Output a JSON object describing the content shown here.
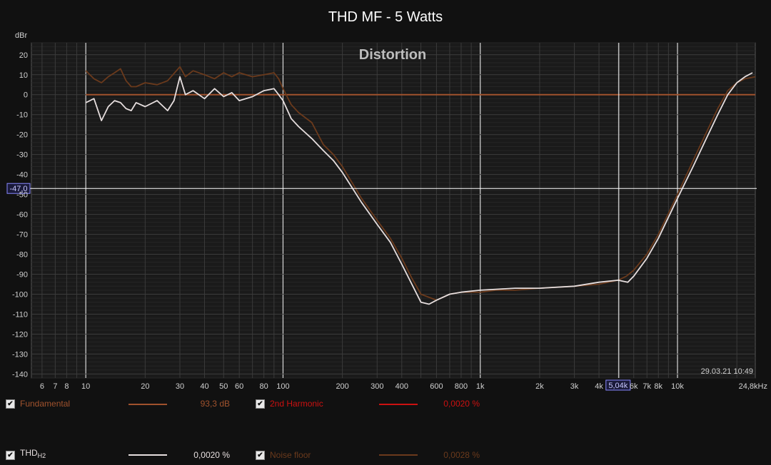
{
  "colors": {
    "background": "#111111",
    "fundamental": "#a0522d",
    "second_harmonic": "#cc1111",
    "thd": "#e6dede",
    "noise_floor": "#6b3a1c",
    "grid_major": "#3a3a3a",
    "cursor": "#ffffff"
  },
  "chart_data": {
    "type": "line",
    "title": "THD MF - 5 Watts",
    "watermark": "Distortion",
    "ylabel": "dBr",
    "xscale": "log",
    "xlim": [
      5.3,
      24800
    ],
    "ylim": [
      -142,
      26
    ],
    "x_tick_labels": [
      {
        "x": 6,
        "label": "6"
      },
      {
        "x": 7,
        "label": "7"
      },
      {
        "x": 8,
        "label": "8"
      },
      {
        "x": 10,
        "label": "10"
      },
      {
        "x": 20,
        "label": "20"
      },
      {
        "x": 30,
        "label": "30"
      },
      {
        "x": 40,
        "label": "40"
      },
      {
        "x": 50,
        "label": "50"
      },
      {
        "x": 60,
        "label": "60"
      },
      {
        "x": 80,
        "label": "80"
      },
      {
        "x": 100,
        "label": "100"
      },
      {
        "x": 200,
        "label": "200"
      },
      {
        "x": 300,
        "label": "300"
      },
      {
        "x": 400,
        "label": "400"
      },
      {
        "x": 600,
        "label": "600"
      },
      {
        "x": 800,
        "label": "800"
      },
      {
        "x": 1000,
        "label": "1k"
      },
      {
        "x": 2000,
        "label": "2k"
      },
      {
        "x": 3000,
        "label": "3k"
      },
      {
        "x": 4000,
        "label": "4k"
      },
      {
        "x": 6000,
        "label": "6k"
      },
      {
        "x": 7000,
        "label": "7k"
      },
      {
        "x": 8000,
        "label": "8k"
      },
      {
        "x": 10000,
        "label": "10k"
      },
      {
        "x": 24800,
        "label": "24,8kHz"
      }
    ],
    "y_ticks": [
      20,
      10,
      0,
      -10,
      -20,
      -30,
      -40,
      -50,
      -60,
      -70,
      -80,
      -90,
      -100,
      -110,
      -120,
      -130,
      -140
    ],
    "cursor": {
      "x": 5040,
      "y": -47.0,
      "x_label": "5,04k",
      "y_label": "-47,0"
    },
    "timestamp": "29.03.21 10:49",
    "series": [
      {
        "name": "Fundamental",
        "key": "fundamental",
        "color": "#a0522d",
        "points": [
          [
            10,
            0
          ],
          [
            24800,
            0
          ]
        ]
      },
      {
        "name": "Noise floor",
        "key": "noise_floor",
        "color": "#6b3a1c",
        "points": [
          [
            10,
            12
          ],
          [
            11,
            8
          ],
          [
            12,
            6
          ],
          [
            13,
            9
          ],
          [
            14,
            11
          ],
          [
            15,
            13
          ],
          [
            16,
            7
          ],
          [
            17,
            4
          ],
          [
            18,
            4
          ],
          [
            20,
            6
          ],
          [
            23,
            5
          ],
          [
            26,
            7
          ],
          [
            30,
            14
          ],
          [
            32,
            9
          ],
          [
            35,
            12
          ],
          [
            40,
            10
          ],
          [
            45,
            8
          ],
          [
            50,
            11
          ],
          [
            55,
            9
          ],
          [
            60,
            11
          ],
          [
            70,
            9
          ],
          [
            80,
            10
          ],
          [
            90,
            11
          ],
          [
            95,
            8
          ],
          [
            100,
            3
          ],
          [
            110,
            -5
          ],
          [
            120,
            -9
          ],
          [
            140,
            -14
          ],
          [
            160,
            -25
          ],
          [
            180,
            -30
          ],
          [
            200,
            -36
          ],
          [
            250,
            -52
          ],
          [
            300,
            -63
          ],
          [
            350,
            -72
          ],
          [
            400,
            -82
          ],
          [
            450,
            -92
          ],
          [
            500,
            -100
          ],
          [
            600,
            -103
          ],
          [
            700,
            -100
          ],
          [
            800,
            -99
          ],
          [
            1000,
            -99
          ],
          [
            1200,
            -98
          ],
          [
            1500,
            -98
          ],
          [
            2000,
            -97
          ],
          [
            3000,
            -96
          ],
          [
            4000,
            -95
          ],
          [
            5000,
            -93
          ],
          [
            5500,
            -91
          ],
          [
            6000,
            -88
          ],
          [
            7000,
            -80
          ],
          [
            8000,
            -70
          ],
          [
            10000,
            -50
          ],
          [
            12000,
            -33
          ],
          [
            14000,
            -19
          ],
          [
            16000,
            -7
          ],
          [
            18000,
            2
          ],
          [
            20000,
            6
          ],
          [
            22000,
            8
          ],
          [
            24800,
            9
          ]
        ]
      },
      {
        "name": "THD",
        "key": "thd",
        "color": "#e6dede",
        "points": [
          [
            10,
            -4
          ],
          [
            11,
            -2
          ],
          [
            12,
            -13
          ],
          [
            13,
            -6
          ],
          [
            14,
            -3
          ],
          [
            15,
            -4
          ],
          [
            16,
            -7
          ],
          [
            17,
            -8
          ],
          [
            18,
            -4
          ],
          [
            20,
            -6
          ],
          [
            23,
            -3
          ],
          [
            26,
            -8
          ],
          [
            28,
            -3
          ],
          [
            30,
            9
          ],
          [
            32,
            0
          ],
          [
            35,
            2
          ],
          [
            40,
            -2
          ],
          [
            45,
            3
          ],
          [
            50,
            -1
          ],
          [
            55,
            1
          ],
          [
            60,
            -3
          ],
          [
            70,
            -1
          ],
          [
            80,
            2
          ],
          [
            90,
            3
          ],
          [
            95,
            0
          ],
          [
            100,
            -3
          ],
          [
            110,
            -12
          ],
          [
            120,
            -16
          ],
          [
            140,
            -22
          ],
          [
            160,
            -28
          ],
          [
            180,
            -33
          ],
          [
            200,
            -39
          ],
          [
            250,
            -54
          ],
          [
            300,
            -65
          ],
          [
            350,
            -74
          ],
          [
            400,
            -85
          ],
          [
            450,
            -95
          ],
          [
            500,
            -104
          ],
          [
            550,
            -105
          ],
          [
            600,
            -103
          ],
          [
            700,
            -100
          ],
          [
            800,
            -99
          ],
          [
            1000,
            -98
          ],
          [
            1500,
            -97
          ],
          [
            2000,
            -97
          ],
          [
            3000,
            -96
          ],
          [
            4000,
            -94
          ],
          [
            5000,
            -93
          ],
          [
            5600,
            -94
          ],
          [
            6000,
            -91
          ],
          [
            7000,
            -82
          ],
          [
            8000,
            -72
          ],
          [
            10000,
            -52
          ],
          [
            12000,
            -36
          ],
          [
            14000,
            -22
          ],
          [
            16000,
            -10
          ],
          [
            18000,
            0
          ],
          [
            20000,
            6
          ],
          [
            22000,
            9
          ],
          [
            24000,
            11
          ]
        ]
      }
    ]
  },
  "legend": {
    "items": [
      {
        "label": "Fundamental",
        "value": "93,3 dB",
        "checked": "✔"
      },
      {
        "label": "2nd Harmonic",
        "value": "0,0020 %",
        "checked": "✔"
      },
      {
        "label_main": "THD",
        "label_sub": "H2",
        "value": "0,0020 %",
        "checked": "✔"
      },
      {
        "label": "Noise floor",
        "value": "0,0028 %",
        "checked": "✔"
      }
    ]
  }
}
